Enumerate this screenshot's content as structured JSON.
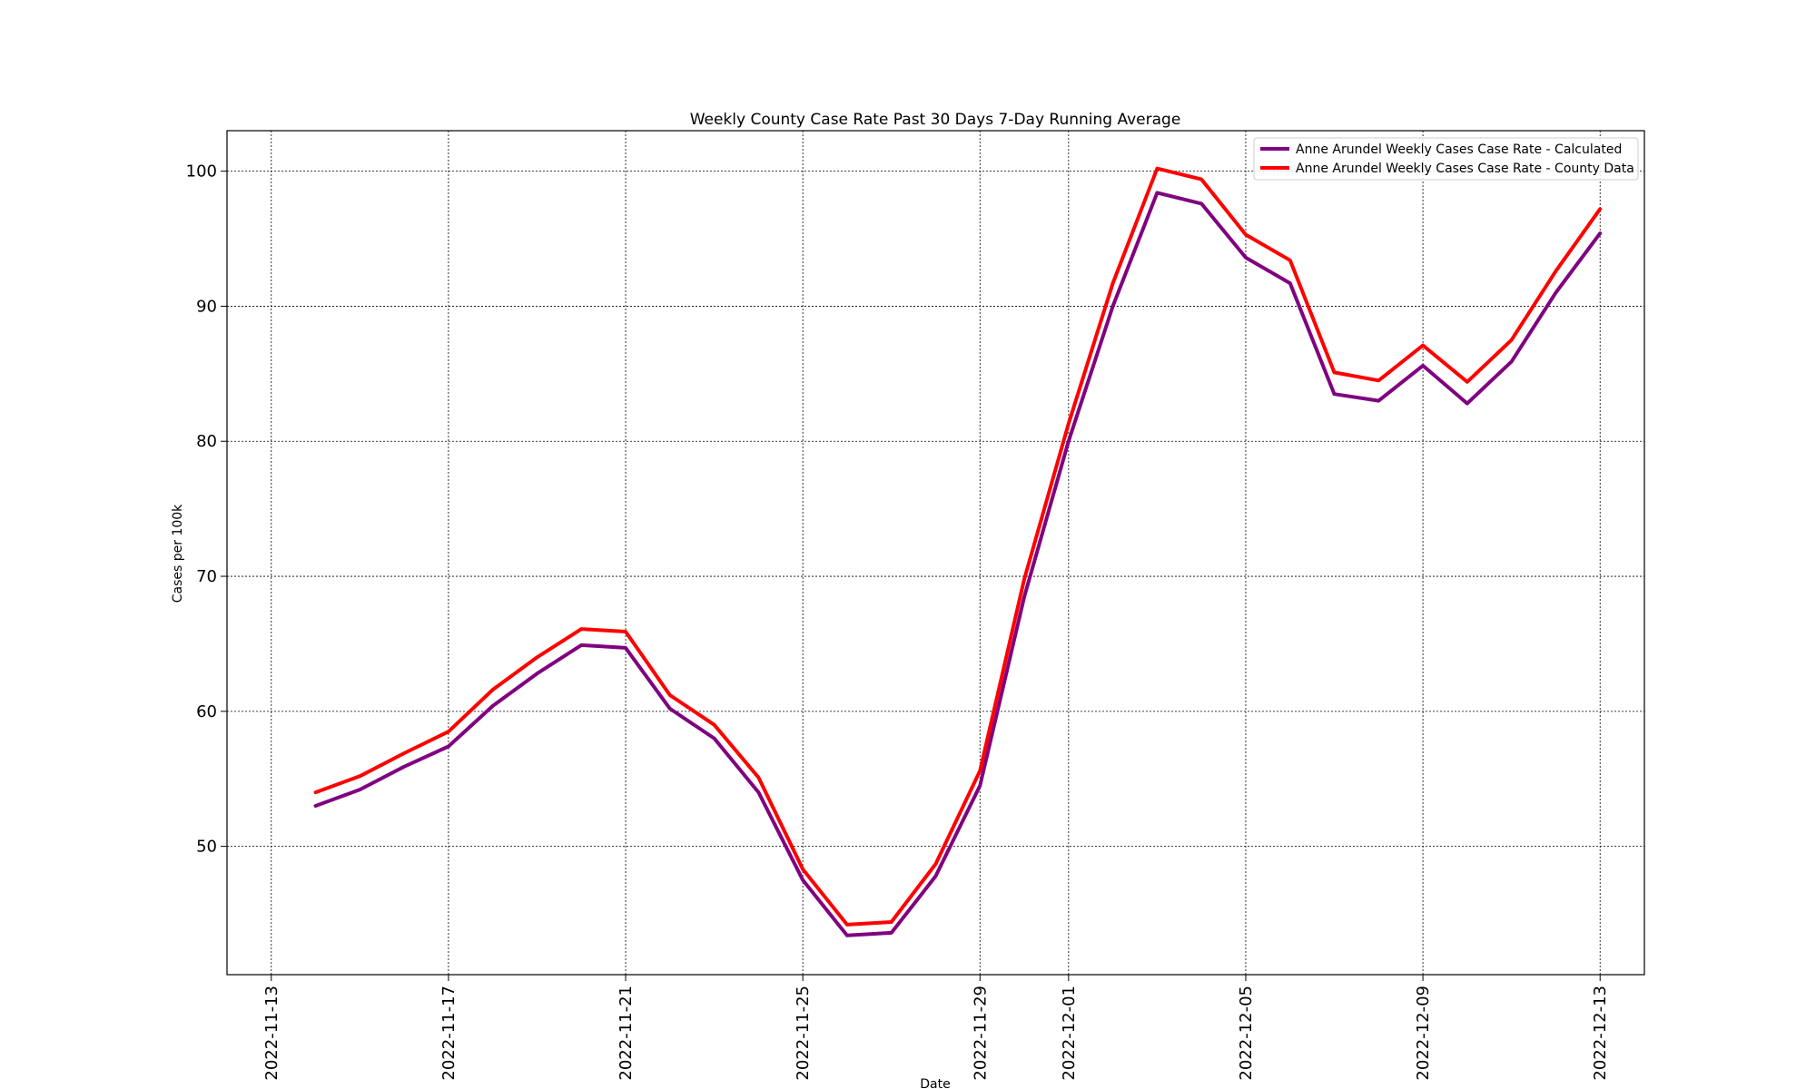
{
  "chart_data": {
    "type": "line",
    "title": "Weekly County Case Rate  Past 30 Days 7-Day Running Average",
    "xlabel": "Date",
    "ylabel": "Cases per 100k",
    "xlim": [
      "2022-11-12",
      "2022-12-14"
    ],
    "ylim": [
      40.5,
      103
    ],
    "x_ticks": [
      "2022-11-13",
      "2022-11-17",
      "2022-11-21",
      "2022-11-25",
      "2022-11-29",
      "2022-12-01",
      "2022-12-05",
      "2022-12-09",
      "2022-12-13"
    ],
    "y_ticks": [
      50,
      60,
      70,
      80,
      90,
      100
    ],
    "grid": true,
    "legend_position": "top-right",
    "x": [
      "2022-11-14",
      "2022-11-15",
      "2022-11-16",
      "2022-11-17",
      "2022-11-18",
      "2022-11-19",
      "2022-11-20",
      "2022-11-21",
      "2022-11-22",
      "2022-11-23",
      "2022-11-24",
      "2022-11-25",
      "2022-11-26",
      "2022-11-27",
      "2022-11-28",
      "2022-11-29",
      "2022-11-30",
      "2022-12-01",
      "2022-12-02",
      "2022-12-03",
      "2022-12-04",
      "2022-12-05",
      "2022-12-06",
      "2022-12-07",
      "2022-12-08",
      "2022-12-09",
      "2022-12-10",
      "2022-12-11",
      "2022-12-12",
      "2022-12-13"
    ],
    "series": [
      {
        "name": "Anne Arundel Weekly Cases Case Rate - Calculated",
        "color": "#800080",
        "values": [
          53.0,
          54.2,
          55.9,
          57.4,
          60.4,
          62.8,
          64.9,
          64.7,
          60.2,
          58.0,
          54.0,
          47.5,
          43.4,
          43.6,
          47.8,
          54.5,
          68.5,
          80.0,
          90.0,
          98.4,
          97.6,
          93.6,
          91.7,
          83.5,
          83.0,
          85.6,
          82.8,
          85.9,
          91.0,
          95.4
        ]
      },
      {
        "name": "Anne Arundel Weekly Cases Case Rate - County Data",
        "color": "#ff0000",
        "values": [
          54.0,
          55.2,
          56.9,
          58.5,
          61.6,
          64.0,
          66.1,
          65.9,
          61.2,
          59.0,
          55.1,
          48.3,
          44.2,
          44.4,
          48.7,
          55.6,
          69.8,
          81.3,
          91.7,
          100.2,
          99.4,
          95.3,
          93.4,
          85.1,
          84.5,
          87.1,
          84.4,
          87.5,
          92.6,
          97.2
        ]
      }
    ]
  }
}
